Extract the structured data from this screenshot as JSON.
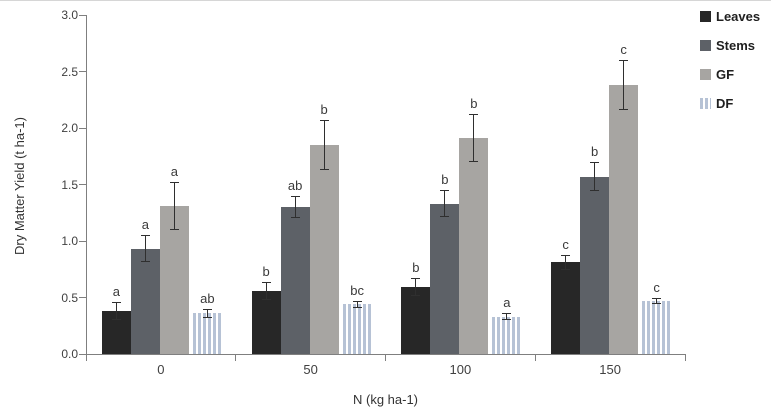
{
  "figure": {
    "background": "#ffffff",
    "axis_color": "#7f7f7f",
    "error_bar_color": "#2f2f2f"
  },
  "chart_data": {
    "type": "bar",
    "title": "",
    "xlabel": "N (kg ha-1)",
    "ylabel": "Dry Matter Yield (t ha-1)",
    "ylim": [
      0.0,
      3.0
    ],
    "ytick_labels": [
      "0.0",
      "0.5",
      "1.0",
      "1.5",
      "2.0",
      "2.5",
      "3.0"
    ],
    "grid": false,
    "legend_position": "top-right-outside",
    "categories": [
      "0",
      "50",
      "100",
      "150"
    ],
    "series": [
      {
        "name": "Leaves",
        "color": "#272727",
        "pattern": "solid",
        "values": [
          0.38,
          0.56,
          0.59,
          0.81
        ],
        "errors": [
          0.08,
          0.08,
          0.08,
          0.07
        ],
        "sig_letters": [
          "a",
          "b",
          "b",
          "c"
        ]
      },
      {
        "name": "Stems",
        "color": "#5d6167",
        "pattern": "solid",
        "values": [
          0.93,
          1.3,
          1.33,
          1.57
        ],
        "errors": [
          0.12,
          0.1,
          0.12,
          0.13
        ],
        "sig_letters": [
          "a",
          "ab",
          "b",
          "b"
        ]
      },
      {
        "name": "GF",
        "color": "#a7a5a2",
        "pattern": "solid",
        "values": [
          1.31,
          1.85,
          1.91,
          2.38
        ],
        "errors": [
          0.21,
          0.22,
          0.21,
          0.22
        ],
        "sig_letters": [
          "a",
          "b",
          "b",
          "c"
        ]
      },
      {
        "name": "DF",
        "color": "#b6c2d5",
        "pattern": "vertical-stripes",
        "values": [
          0.36,
          0.44,
          0.33,
          0.47
        ],
        "errors": [
          0.04,
          0.03,
          0.03,
          0.03
        ],
        "sig_letters": [
          "ab",
          "bc",
          "a",
          "c"
        ]
      }
    ]
  }
}
